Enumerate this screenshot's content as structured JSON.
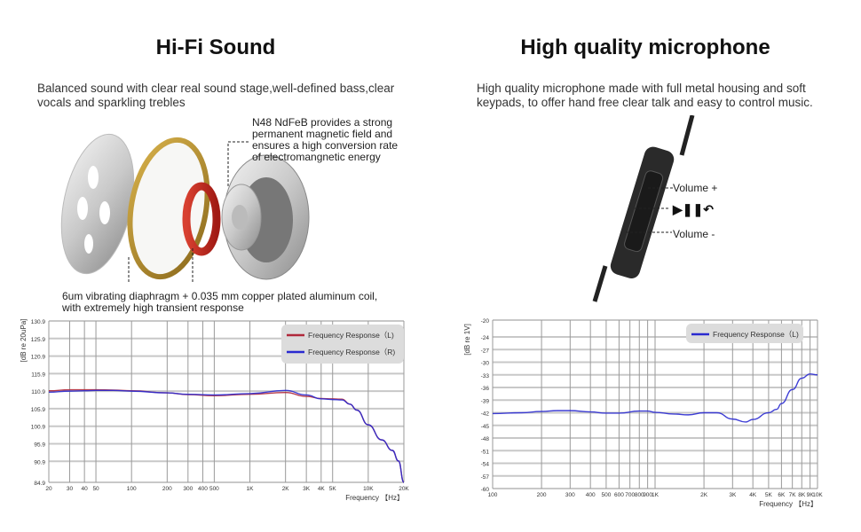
{
  "left": {
    "title": "Hi-Fi Sound",
    "description": "Balanced sound with clear real sound stage,well-defined bass,clear vocals and sparkling trebles",
    "magnet_note": [
      "N48  NdFeB provides  a  strong",
      "permanent magnetic field and",
      " ensures a high conversion rate",
      "of electromangnetic energy"
    ],
    "diaphragm_note": [
      "6um vibrating diaphragm + 0.035 mm copper plated aluminum coil,",
      "with extremely high transient response"
    ]
  },
  "right": {
    "title": "High quality microphone",
    "description": "High quality microphone made with full metal housing and soft keypads,  to offer hand free clear talk and easy to control music.",
    "controls": {
      "volume_up": "Volume +",
      "play_pause_icons": "play-pause-call-icon",
      "volume_down": "Volume -"
    }
  },
  "chart_data": [
    {
      "type": "line",
      "ylabel": "[dB re 20uPa]",
      "xlabel": "Frequency 【Hz】",
      "x_scale": "log",
      "xlim": [
        20,
        20000
      ],
      "ylim": [
        84.9,
        130.9
      ],
      "yticks": [
        "130.9",
        "125.9",
        "120.9",
        "115.9",
        "110.9",
        "105.9",
        "100.9",
        "95.9",
        "90.9",
        "84.9"
      ],
      "xticks": [
        [
          "20",
          20
        ],
        [
          "30",
          30
        ],
        [
          "40",
          40
        ],
        [
          "50",
          50
        ],
        [
          "100",
          100
        ],
        [
          "200",
          200
        ],
        [
          "300",
          300
        ],
        [
          "400",
          400
        ],
        [
          "500",
          500
        ],
        [
          "1K",
          1000
        ],
        [
          "2K",
          2000
        ],
        [
          "3K",
          3000
        ],
        [
          "4K",
          4000
        ],
        [
          "5K",
          5000
        ],
        [
          "10K",
          10000
        ],
        [
          "20K",
          20000
        ]
      ],
      "grid": true,
      "legend": "top-right",
      "x": [
        20,
        30,
        40,
        50,
        70,
        100,
        200,
        300,
        500,
        1000,
        2000,
        3000,
        4000,
        5000,
        6000,
        7000,
        8000,
        10000,
        13000,
        16000,
        18000,
        20000
      ],
      "series": [
        {
          "name": "Frequency Response（L)",
          "color": "#b0283a",
          "values": [
            111.0,
            111.3,
            111.3,
            111.3,
            111.2,
            111.0,
            110.4,
            109.9,
            109.6,
            110.0,
            110.5,
            109.4,
            108.8,
            108.7,
            108.6,
            107.2,
            105.5,
            101.3,
            97.0,
            94.0,
            91.0,
            84.9
          ]
        },
        {
          "name": "Frequency Response（R)",
          "color": "#2a2ad0",
          "values": [
            110.6,
            110.9,
            111.0,
            111.1,
            111.1,
            110.9,
            110.4,
            110.0,
            109.8,
            110.2,
            111.1,
            109.8,
            108.7,
            108.5,
            108.4,
            107.2,
            105.5,
            101.3,
            97.0,
            94.0,
            91.0,
            84.9
          ]
        }
      ]
    },
    {
      "type": "line",
      "ylabel": "[dB re 1V]",
      "xlabel": "Frequency 【Hz】",
      "x_scale": "log",
      "xlim": [
        100,
        10000
      ],
      "ylim": [
        -60,
        -20
      ],
      "yticks": [
        "-20",
        "-24",
        "-27",
        "-30",
        "-33",
        "-36",
        "-39",
        "-42",
        "-45",
        "-48",
        "-51",
        "-54",
        "-57",
        "-60"
      ],
      "xticks": [
        [
          "100",
          100
        ],
        [
          "200",
          200
        ],
        [
          "300",
          300
        ],
        [
          "400",
          400
        ],
        [
          "500",
          500
        ],
        [
          "600",
          600
        ],
        [
          "700",
          700
        ],
        [
          "800",
          800
        ],
        [
          "900",
          900
        ],
        [
          "1K",
          1000
        ],
        [
          "2K",
          2000
        ],
        [
          "3K",
          3000
        ],
        [
          "4K",
          4000
        ],
        [
          "5K",
          5000
        ],
        [
          "6K",
          6000
        ],
        [
          "7K",
          7000
        ],
        [
          "8K",
          8000
        ],
        [
          "9K",
          9000
        ],
        [
          "10K",
          10000
        ]
      ],
      "grid": true,
      "legend": "top-right",
      "x": [
        100,
        150,
        200,
        250,
        300,
        400,
        500,
        600,
        800,
        900,
        1000,
        1300,
        1600,
        2000,
        2400,
        3000,
        3600,
        4000,
        5000,
        5600,
        6000,
        7000,
        8000,
        9000,
        10000
      ],
      "series": [
        {
          "name": "Frequency Response（L)",
          "color": "#2a2ad0",
          "values": [
            -42.2,
            -42.0,
            -41.7,
            -41.5,
            -41.5,
            -41.8,
            -42.1,
            -42.1,
            -41.6,
            -41.6,
            -41.9,
            -42.3,
            -42.5,
            -42.0,
            -42.0,
            -43.5,
            -44.2,
            -43.6,
            -42.0,
            -41.2,
            -39.8,
            -36.5,
            -33.8,
            -32.8,
            -33.0
          ]
        }
      ]
    }
  ]
}
